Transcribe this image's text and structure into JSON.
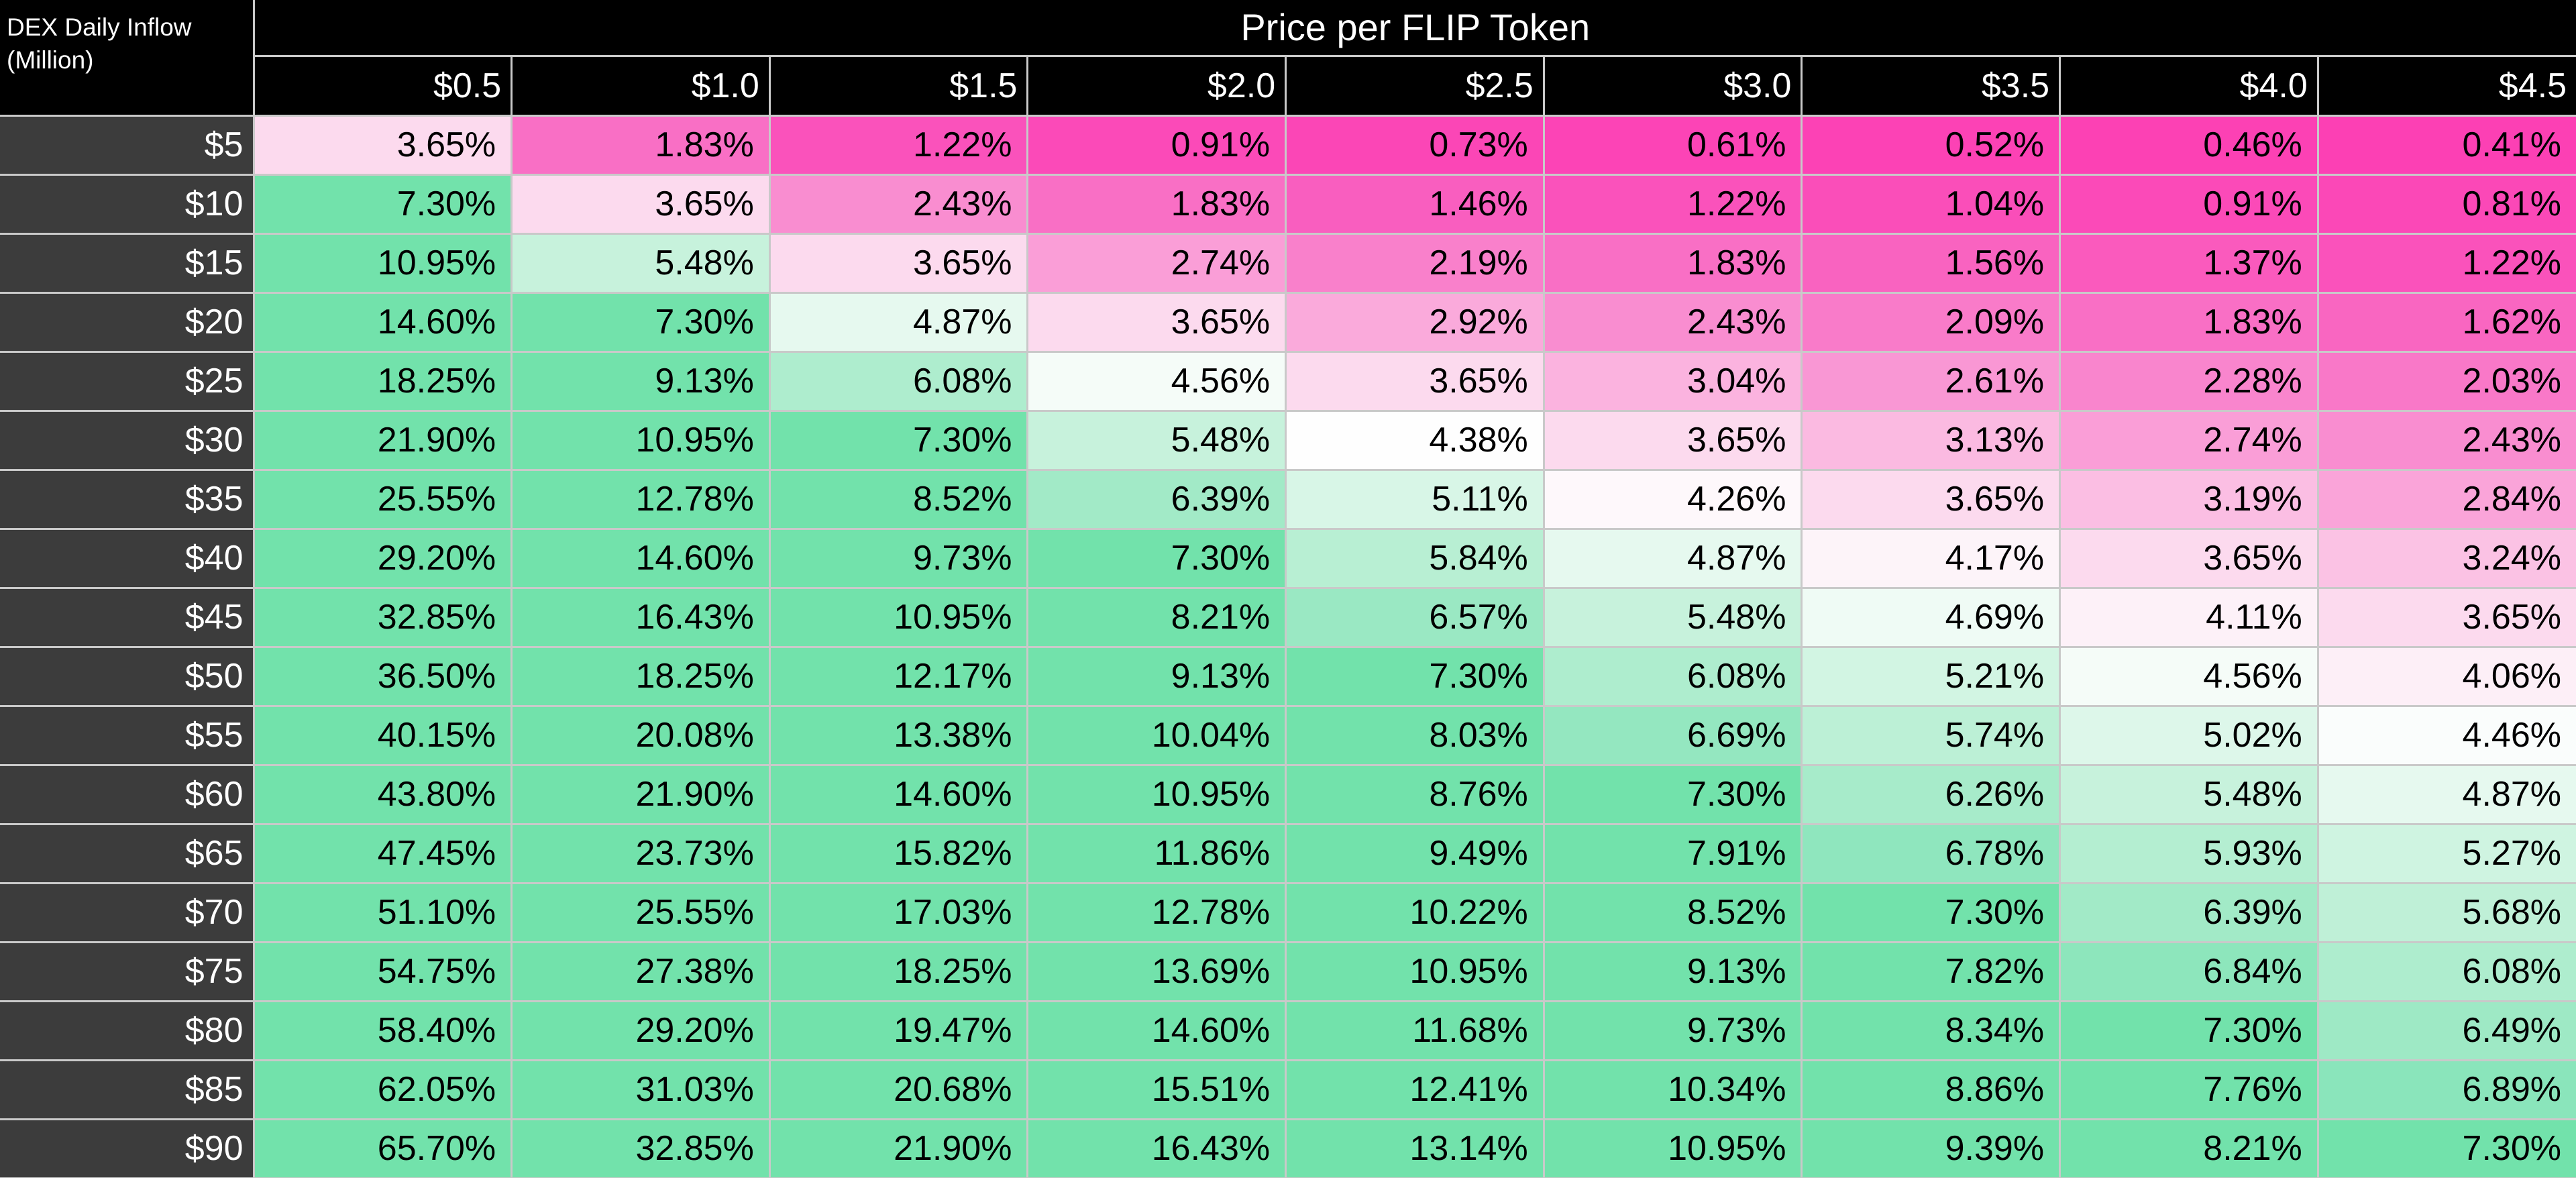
{
  "header": {
    "title": "Price per FLIP Token",
    "corner_label_line1": "DEX Daily Inflow",
    "corner_label_line2": "(Million)"
  },
  "chart_data": {
    "type": "heatmap",
    "title": "Price per FLIP Token",
    "xlabel": "Price per FLIP Token",
    "ylabel": "DEX Daily Inflow (Million)",
    "unit": "%",
    "columns": [
      "$0.5",
      "$1.0",
      "$1.5",
      "$2.0",
      "$2.5",
      "$3.0",
      "$3.5",
      "$4.0",
      "$4.5"
    ],
    "rows": [
      "$5",
      "$10",
      "$15",
      "$20",
      "$25",
      "$30",
      "$35",
      "$40",
      "$45",
      "$50",
      "$55",
      "$60",
      "$65",
      "$70",
      "$75",
      "$80",
      "$85",
      "$90"
    ],
    "values": [
      [
        3.65,
        1.83,
        1.22,
        0.91,
        0.73,
        0.61,
        0.52,
        0.46,
        0.41
      ],
      [
        7.3,
        3.65,
        2.43,
        1.83,
        1.46,
        1.22,
        1.04,
        0.91,
        0.81
      ],
      [
        10.95,
        5.48,
        3.65,
        2.74,
        2.19,
        1.83,
        1.56,
        1.37,
        1.22
      ],
      [
        14.6,
        7.3,
        4.87,
        3.65,
        2.92,
        2.43,
        2.09,
        1.83,
        1.62
      ],
      [
        18.25,
        9.13,
        6.08,
        4.56,
        3.65,
        3.04,
        2.61,
        2.28,
        2.03
      ],
      [
        21.9,
        10.95,
        7.3,
        5.48,
        4.38,
        3.65,
        3.13,
        2.74,
        2.43
      ],
      [
        25.55,
        12.78,
        8.52,
        6.39,
        5.11,
        4.26,
        3.65,
        3.19,
        2.84
      ],
      [
        29.2,
        14.6,
        9.73,
        7.3,
        5.84,
        4.87,
        4.17,
        3.65,
        3.24
      ],
      [
        32.85,
        16.43,
        10.95,
        8.21,
        6.57,
        5.48,
        4.69,
        4.11,
        3.65
      ],
      [
        36.5,
        18.25,
        12.17,
        9.13,
        7.3,
        6.08,
        5.21,
        4.56,
        4.06
      ],
      [
        40.15,
        20.08,
        13.38,
        10.04,
        8.03,
        6.69,
        5.74,
        5.02,
        4.46
      ],
      [
        43.8,
        21.9,
        14.6,
        10.95,
        8.76,
        7.3,
        6.26,
        5.48,
        4.87
      ],
      [
        47.45,
        23.73,
        15.82,
        11.86,
        9.49,
        7.91,
        6.78,
        5.93,
        5.27
      ],
      [
        51.1,
        25.55,
        17.03,
        12.78,
        10.22,
        8.52,
        7.3,
        6.39,
        5.68
      ],
      [
        54.75,
        27.38,
        18.25,
        13.69,
        10.95,
        9.13,
        7.82,
        6.84,
        6.08
      ],
      [
        58.4,
        29.2,
        19.47,
        14.6,
        11.68,
        9.73,
        8.34,
        7.3,
        6.49
      ],
      [
        62.05,
        31.03,
        20.68,
        15.51,
        12.41,
        10.34,
        8.86,
        7.76,
        6.89
      ],
      [
        65.7,
        32.85,
        21.9,
        16.43,
        13.14,
        10.95,
        9.39,
        8.21,
        7.3
      ]
    ],
    "color_scale": {
      "description": "diverging pink-white-green, clamped outside anchor range",
      "anchors": [
        [
          0.41,
          "#FC40B4"
        ],
        [
          0.81,
          "#FB48B7"
        ],
        [
          1.22,
          "#FA52BB"
        ],
        [
          1.62,
          "#F966C1"
        ],
        [
          2.03,
          "#F978C8"
        ],
        [
          2.43,
          "#F98DD0"
        ],
        [
          2.84,
          "#FAA4D9"
        ],
        [
          3.24,
          "#FBC2E4"
        ],
        [
          3.65,
          "#FCDAEE"
        ],
        [
          4.06,
          "#FDEFF7"
        ],
        [
          4.38,
          "#FEFEFE"
        ],
        [
          4.87,
          "#E6F9EF"
        ],
        [
          5.27,
          "#CFF4E1"
        ],
        [
          5.68,
          "#BFF0D7"
        ],
        [
          6.08,
          "#AEEDCE"
        ],
        [
          6.49,
          "#9EE9C5"
        ],
        [
          6.89,
          "#8AE5BB"
        ],
        [
          7.3,
          "#72E2AB"
        ]
      ]
    },
    "layout": {
      "grid_color": "#C9C9C9",
      "header_bg": "#000000",
      "row_header_bg": "#3C3C3C",
      "header_text_color": "#FFFFFF",
      "cell_text_color": "#000000"
    }
  }
}
